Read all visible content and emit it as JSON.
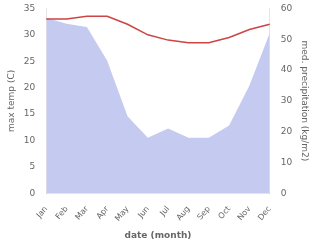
{
  "chart_data": {
    "type": "line",
    "xlabel": "date (month)",
    "ylabel": "max temp (C)",
    "y2label": "med. precipitation (kg/m2)",
    "categories": [
      "Jan",
      "Feb",
      "Mar",
      "Apr",
      "May",
      "Jun",
      "Jul",
      "Aug",
      "Sep",
      "Oct",
      "Nov",
      "Dec"
    ],
    "series": [
      {
        "type": "area",
        "axis": "y2",
        "color": "#c5caf0",
        "values": [
          57,
          55,
          54,
          43,
          25,
          18,
          21,
          18,
          18,
          22,
          35,
          52
        ]
      },
      {
        "type": "line",
        "color": "#cc4444",
        "values": [
          33.0,
          33.0,
          33.5,
          33.5,
          32.0,
          30.0,
          29.0,
          28.5,
          28.5,
          29.5,
          31.0,
          32.0
        ]
      }
    ],
    "ylim": [
      0,
      35
    ],
    "yticks": [
      0,
      5,
      10,
      15,
      20,
      25,
      30,
      35
    ],
    "y2lim": [
      0,
      60
    ],
    "y2ticks": [
      0,
      10,
      20,
      30,
      40,
      50,
      60
    ],
    "grid": false
  }
}
